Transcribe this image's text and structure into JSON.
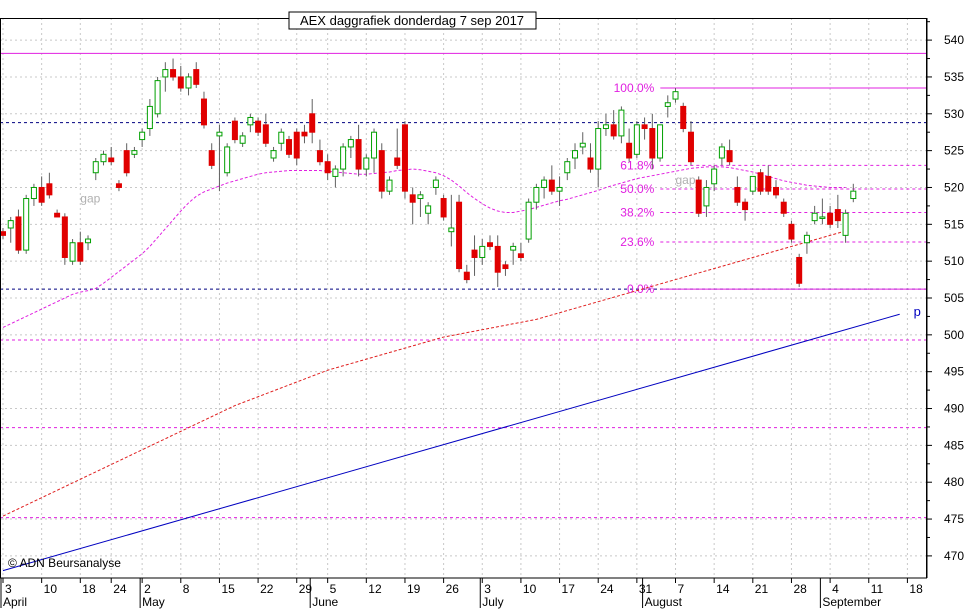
{
  "chart_data": {
    "type": "candlestick",
    "title": "AEX daggrafiek donderdag 7 sep 2017",
    "credit": "© ADN Beursanalyse",
    "ylim": [
      467,
      543
    ],
    "y_ticks": [
      470,
      475,
      480,
      485,
      490,
      495,
      500,
      505,
      510,
      515,
      520,
      525,
      530,
      535,
      540
    ],
    "grid": true,
    "x_tick_labels": [
      {
        "i": 0,
        "label": "3"
      },
      {
        "i": 5,
        "label": "10"
      },
      {
        "i": 10,
        "label": "18"
      },
      {
        "i": 14,
        "label": "24"
      },
      {
        "i": 18,
        "label": "2"
      },
      {
        "i": 23,
        "label": "8"
      },
      {
        "i": 28,
        "label": "15"
      },
      {
        "i": 33,
        "label": "22"
      },
      {
        "i": 38,
        "label": "29"
      },
      {
        "i": 42,
        "label": "5"
      },
      {
        "i": 47,
        "label": "12"
      },
      {
        "i": 52,
        "label": "19"
      },
      {
        "i": 57,
        "label": "26"
      },
      {
        "i": 62,
        "label": "3"
      },
      {
        "i": 67,
        "label": "10"
      },
      {
        "i": 72,
        "label": "17"
      },
      {
        "i": 77,
        "label": "24"
      },
      {
        "i": 82,
        "label": "31"
      },
      {
        "i": 87,
        "label": "7"
      },
      {
        "i": 92,
        "label": "14"
      },
      {
        "i": 97,
        "label": "21"
      },
      {
        "i": 102,
        "label": "28"
      },
      {
        "i": 107,
        "label": "4"
      },
      {
        "i": 112,
        "label": "11"
      },
      {
        "i": 117,
        "label": "18"
      }
    ],
    "month_labels": [
      {
        "i": 0,
        "label": "April"
      },
      {
        "i": 18,
        "label": "May"
      },
      {
        "i": 40,
        "label": "June"
      },
      {
        "i": 62,
        "label": "July"
      },
      {
        "i": 83,
        "label": "August"
      },
      {
        "i": 106,
        "label": "September"
      }
    ],
    "horizontal_lines": [
      {
        "y": 538.2,
        "color": "#e020e0",
        "style": "solid"
      },
      {
        "y": 528.8,
        "color": "#000080",
        "style": "dashed"
      },
      {
        "y": 506.2,
        "color": "#000080",
        "style": "dashed"
      },
      {
        "y": 499.3,
        "color": "#e020e0",
        "style": "dashed"
      },
      {
        "y": 487.4,
        "color": "#e020e0",
        "style": "dashed"
      },
      {
        "y": 475.2,
        "color": "#e020e0",
        "style": "dashed"
      }
    ],
    "fibonacci": {
      "start_i": 84,
      "levels": [
        {
          "label": "100.0%",
          "y": 533.5
        },
        {
          "label": "61.8%",
          "y": 523.0
        },
        {
          "label": "50.0%",
          "y": 519.8
        },
        {
          "label": "38.2%",
          "y": 516.6
        },
        {
          "label": "23.6%",
          "y": 512.6
        },
        {
          "label": "0.0%",
          "y": 506.2
        }
      ]
    },
    "trendline": {
      "x0": 0,
      "y0": 468.0,
      "x1": 116,
      "y1": 502.8,
      "label": "p"
    },
    "annotations": [
      {
        "text": "gap",
        "i": 10,
        "y": 518.5
      },
      {
        "text": "gap",
        "i": 87,
        "y": 521.0
      }
    ],
    "series": [
      {
        "name": "",
        "type": "ohlc",
        "values": [
          [
            514.0,
            514.5,
            513.0,
            513.5
          ],
          [
            514.5,
            516.0,
            512.5,
            515.5
          ],
          [
            516.0,
            517.0,
            511.0,
            511.5
          ],
          [
            511.5,
            519.0,
            511.0,
            518.5
          ],
          [
            518.5,
            520.5,
            517.5,
            520.0
          ],
          [
            520.0,
            521.5,
            517.5,
            518.0
          ],
          [
            520.5,
            522.0,
            518.5,
            519.0
          ],
          [
            516.5,
            517.0,
            516.0,
            516.0
          ],
          [
            516.0,
            516.5,
            509.5,
            510.5
          ],
          [
            510.0,
            513.0,
            509.5,
            512.5
          ],
          [
            512.5,
            514.0,
            509.5,
            510.0
          ],
          [
            512.5,
            513.5,
            511.5,
            513.0
          ],
          [
            522.0,
            524.0,
            521.0,
            523.5
          ],
          [
            523.5,
            525.0,
            523.0,
            524.5
          ],
          [
            524.0,
            525.5,
            523.0,
            523.5
          ],
          [
            520.5,
            521.0,
            519.5,
            520.0
          ],
          [
            525.0,
            526.0,
            521.5,
            522.0
          ],
          [
            524.5,
            525.5,
            524.0,
            525.0
          ],
          [
            526.5,
            528.0,
            525.5,
            527.5
          ],
          [
            528.0,
            532.0,
            527.0,
            531.0
          ],
          [
            530.0,
            535.0,
            529.5,
            534.5
          ],
          [
            535.0,
            537.0,
            533.0,
            536.0
          ],
          [
            536.0,
            537.5,
            534.5,
            535.0
          ],
          [
            535.0,
            536.5,
            533.0,
            533.5
          ],
          [
            533.5,
            535.5,
            532.5,
            535.0
          ],
          [
            536.0,
            537.0,
            533.5,
            534.0
          ],
          [
            532.0,
            533.0,
            528.0,
            528.5
          ],
          [
            525.0,
            526.0,
            522.5,
            523.0
          ],
          [
            527.0,
            528.5,
            519.5,
            527.5
          ],
          [
            522.0,
            526.0,
            521.5,
            525.5
          ],
          [
            529.0,
            529.5,
            526.0,
            526.5
          ],
          [
            526.0,
            527.5,
            525.5,
            527.0
          ],
          [
            528.5,
            530.0,
            527.5,
            529.5
          ],
          [
            529.0,
            529.5,
            527.0,
            527.5
          ],
          [
            528.5,
            530.0,
            525.5,
            526.0
          ],
          [
            524.0,
            525.5,
            523.5,
            525.0
          ],
          [
            526.0,
            528.0,
            525.0,
            527.5
          ],
          [
            526.5,
            527.0,
            524.0,
            524.5
          ],
          [
            527.5,
            528.0,
            523.0,
            524.0
          ],
          [
            527.5,
            528.5,
            526.0,
            527.0
          ],
          [
            530.0,
            532.0,
            526.0,
            527.5
          ],
          [
            525.0,
            526.5,
            523.0,
            523.5
          ],
          [
            523.5,
            524.5,
            521.0,
            522.0
          ],
          [
            521.5,
            523.0,
            520.0,
            522.5
          ],
          [
            522.5,
            526.0,
            521.5,
            525.5
          ],
          [
            525.5,
            527.0,
            524.0,
            526.5
          ],
          [
            526.5,
            528.5,
            521.5,
            522.5
          ],
          [
            522.5,
            524.5,
            521.5,
            524.0
          ],
          [
            524.0,
            528.0,
            522.0,
            527.5
          ],
          [
            525.0,
            526.0,
            518.5,
            519.5
          ],
          [
            519.5,
            521.5,
            519.0,
            521.0
          ],
          [
            524.0,
            528.0,
            522.5,
            523.0
          ],
          [
            528.5,
            529.0,
            518.5,
            519.5
          ],
          [
            519.0,
            520.0,
            515.0,
            518.0
          ],
          [
            518.5,
            519.5,
            516.0,
            519.0
          ],
          [
            516.5,
            518.0,
            515.0,
            517.5
          ],
          [
            520.0,
            521.5,
            519.0,
            521.0
          ],
          [
            518.5,
            519.0,
            515.5,
            516.0
          ],
          [
            514.0,
            519.0,
            512.0,
            514.5
          ],
          [
            518.0,
            519.0,
            508.5,
            509.0
          ],
          [
            508.5,
            509.5,
            507.0,
            507.5
          ],
          [
            511.5,
            513.5,
            508.0,
            510.5
          ],
          [
            510.5,
            513.0,
            509.5,
            512.0
          ],
          [
            512.5,
            513.5,
            511.5,
            512.0
          ],
          [
            512.0,
            513.5,
            506.5,
            508.5
          ],
          [
            509.5,
            510.0,
            508.0,
            509.0
          ],
          [
            511.5,
            512.5,
            509.5,
            512.0
          ],
          [
            511.0,
            512.5,
            510.0,
            510.5
          ],
          [
            513.0,
            518.5,
            512.5,
            518.0
          ],
          [
            518.0,
            520.5,
            517.0,
            520.0
          ],
          [
            520.0,
            521.5,
            518.5,
            521.0
          ],
          [
            521.0,
            523.0,
            519.0,
            519.5
          ],
          [
            519.5,
            521.5,
            517.5,
            520.0
          ],
          [
            522.0,
            524.0,
            521.0,
            523.5
          ],
          [
            524.0,
            526.0,
            522.5,
            525.0
          ],
          [
            525.5,
            527.5,
            524.5,
            526.0
          ],
          [
            524.0,
            526.0,
            522.0,
            522.5
          ],
          [
            522.5,
            529.0,
            520.0,
            528.0
          ],
          [
            528.0,
            530.0,
            527.0,
            528.5
          ],
          [
            528.5,
            530.5,
            526.5,
            527.0
          ],
          [
            527.0,
            531.0,
            526.0,
            530.5
          ],
          [
            526.0,
            528.0,
            523.5,
            524.0
          ],
          [
            524.5,
            529.0,
            524.0,
            528.5
          ],
          [
            528.5,
            529.5,
            526.5,
            528.0
          ],
          [
            528.0,
            530.0,
            522.5,
            524.0
          ],
          [
            524.0,
            528.5,
            523.5,
            528.5
          ],
          [
            531.0,
            532.5,
            529.5,
            531.5
          ],
          [
            532.0,
            533.5,
            531.5,
            533.0
          ],
          [
            531.0,
            531.5,
            527.5,
            528.0
          ],
          [
            527.5,
            529.0,
            523.0,
            523.5
          ],
          [
            521.0,
            521.5,
            516.0,
            516.5
          ],
          [
            517.5,
            521.0,
            516.0,
            520.0
          ],
          [
            520.5,
            523.0,
            519.5,
            522.5
          ],
          [
            524.0,
            526.0,
            523.0,
            525.5
          ],
          [
            525.0,
            526.5,
            523.0,
            523.5
          ],
          [
            520.0,
            521.5,
            517.5,
            518.0
          ],
          [
            518.0,
            518.5,
            515.5,
            517.0
          ],
          [
            519.5,
            521.5,
            519.0,
            521.5
          ],
          [
            522.0,
            522.5,
            519.0,
            519.5
          ],
          [
            521.5,
            523.0,
            519.0,
            519.5
          ],
          [
            520.0,
            521.0,
            518.5,
            519.0
          ],
          [
            518.0,
            518.5,
            516.0,
            516.5
          ],
          [
            515.0,
            515.5,
            512.5,
            513.0
          ],
          [
            510.5,
            511.0,
            506.5,
            507.0
          ],
          [
            512.5,
            514.0,
            511.0,
            513.5
          ],
          [
            515.5,
            517.5,
            515.0,
            516.5
          ],
          [
            516.0,
            518.5,
            515.0,
            516.0
          ],
          [
            516.5,
            517.5,
            514.5,
            515.0
          ],
          [
            517.0,
            519.0,
            514.5,
            515.5
          ],
          [
            513.5,
            517.0,
            512.5,
            516.5
          ],
          [
            518.5,
            520.5,
            518.0,
            519.5
          ]
        ]
      },
      {
        "name": "",
        "type": "line",
        "color": "#e020e0",
        "style": "dashed",
        "values": [
          501.0,
          501.5,
          502.0,
          502.5,
          503.0,
          503.5,
          504.0,
          504.5,
          505.0,
          505.5,
          505.8,
          506.0,
          506.3,
          507.0,
          507.8,
          508.6,
          509.4,
          510.2,
          511.0,
          512.0,
          513.2,
          514.4,
          515.6,
          516.8,
          517.9,
          518.8,
          519.4,
          519.8,
          520.2,
          520.6,
          520.9,
          521.2,
          521.5,
          521.8,
          522.0,
          522.1,
          522.2,
          522.3,
          522.3,
          522.3,
          522.3,
          522.3,
          522.2,
          522.1,
          522.0,
          521.9,
          521.8,
          521.8,
          521.9,
          522.0,
          522.1,
          522.3,
          522.4,
          522.5,
          522.4,
          522.2,
          522.0,
          521.6,
          521.0,
          520.2,
          519.3,
          518.5,
          517.8,
          517.2,
          516.8,
          516.6,
          516.6,
          516.8,
          517.0,
          517.3,
          517.6,
          517.9,
          518.2,
          518.4,
          518.7,
          519.0,
          519.3,
          519.6,
          520.0,
          520.3,
          520.6,
          520.9,
          521.2,
          521.4,
          521.6,
          521.8,
          522.0,
          522.2,
          522.4,
          522.6,
          522.7,
          522.8,
          522.8,
          522.8,
          522.7,
          522.5,
          522.3,
          522.1,
          521.8,
          521.5,
          521.2,
          520.9,
          520.7,
          520.5,
          520.3,
          520.2,
          520.1,
          520.0,
          520.0,
          520.0
        ]
      },
      {
        "name": "",
        "type": "line",
        "color": "#e02020",
        "style": "dashed",
        "values": [
          475.4,
          475.9,
          476.4,
          476.9,
          477.4,
          477.9,
          478.4,
          478.9,
          479.4,
          479.9,
          480.4,
          480.9,
          481.4,
          481.9,
          482.4,
          482.9,
          483.4,
          483.9,
          484.4,
          484.9,
          485.4,
          485.9,
          486.4,
          486.9,
          487.4,
          487.9,
          488.4,
          488.9,
          489.4,
          489.9,
          490.4,
          490.8,
          491.2,
          491.6,
          492.0,
          492.4,
          492.8,
          493.2,
          493.6,
          494.0,
          494.4,
          494.8,
          495.2,
          495.5,
          495.8,
          496.1,
          496.4,
          496.7,
          497.0,
          497.3,
          497.6,
          497.9,
          498.2,
          498.5,
          498.8,
          499.1,
          499.4,
          499.7,
          499.9,
          500.1,
          500.3,
          500.5,
          500.7,
          500.9,
          501.1,
          501.3,
          501.5,
          501.7,
          501.9,
          502.1,
          502.4,
          502.7,
          503.0,
          503.3,
          503.6,
          503.9,
          504.2,
          504.5,
          504.8,
          505.1,
          505.4,
          505.7,
          506.0,
          506.3,
          506.6,
          506.9,
          507.2,
          507.5,
          507.8,
          508.1,
          508.4,
          508.7,
          509.0,
          509.3,
          509.6,
          509.9,
          510.2,
          510.5,
          510.8,
          511.1,
          511.4,
          511.7,
          512.0,
          512.3,
          512.6,
          512.9,
          513.2,
          513.5,
          513.8,
          514.1
        ]
      }
    ]
  }
}
